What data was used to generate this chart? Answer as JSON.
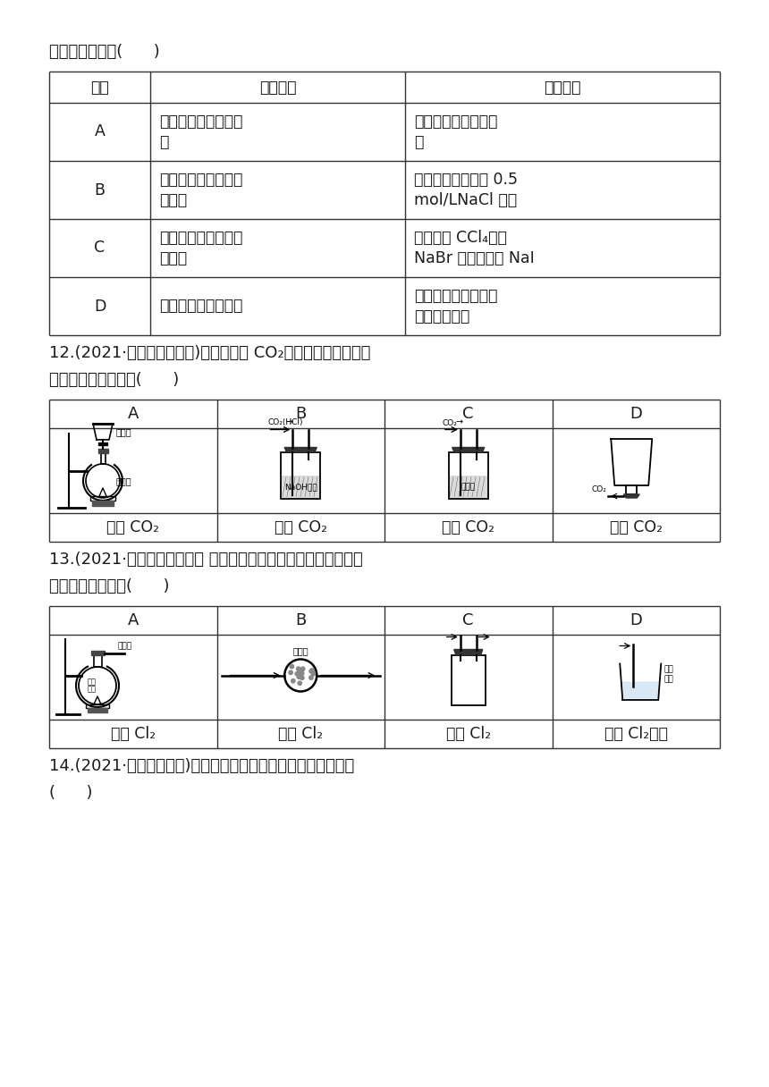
{
  "bg_color": "#ffffff",
  "title_line": "成相应实验的是(      )",
  "table1_headers": [
    "选项",
    "实验器材",
    "相应实验"
  ],
  "table1_rows": [
    [
      "A",
      "烧杯、玻璃棒、蒸发\n皿",
      "硫酸铜溶液的浓缩结\n晶"
    ],
    [
      "B",
      "烧杯、胶头滴管、电\n子天平",
      "用固体氯化钠配制 0.5\nmol/LNaCl 溶液"
    ],
    [
      "C",
      "烧杯、胶头滴管、分\n液漏斗",
      "用溴水和 CCl₄除去\nNaBr 溶液中少量 NaI"
    ],
    [
      "D",
      "烧杯、玻璃棒、滤纸",
      "用盐酸除去硫酸钡中\n的少量碳酸钡"
    ]
  ],
  "q12_line1": "12.(2021·南京、盐城二模)实验室制取 CO₂时，下列装置不能达",
  "q12_line2": "到相应实验目的的是(      )",
  "q12_headers": [
    "A",
    "B",
    "C",
    "D"
  ],
  "q12_labels": [
    "生成 CO₂",
    "净化 CO₂",
    "干燥 CO₂",
    "收集 CO₂"
  ],
  "q13_line1": "13.(2021·苏锡常镇市一模） 实验室制取氯气时，下列实验装置能",
  "q13_line2": "达到相应目的的是(      )",
  "q13_headers": [
    "A",
    "B",
    "C",
    "D"
  ],
  "q13_labels": [
    "生成 Cl₂",
    "净化 Cl₂",
    "收集 Cl₂",
    "吸收 Cl₂尾气"
  ],
  "q14_line1": "14.(2021·江苏七市二模)下列与硫酸相关的实验能达到目的的是",
  "q14_line2": "(      )"
}
